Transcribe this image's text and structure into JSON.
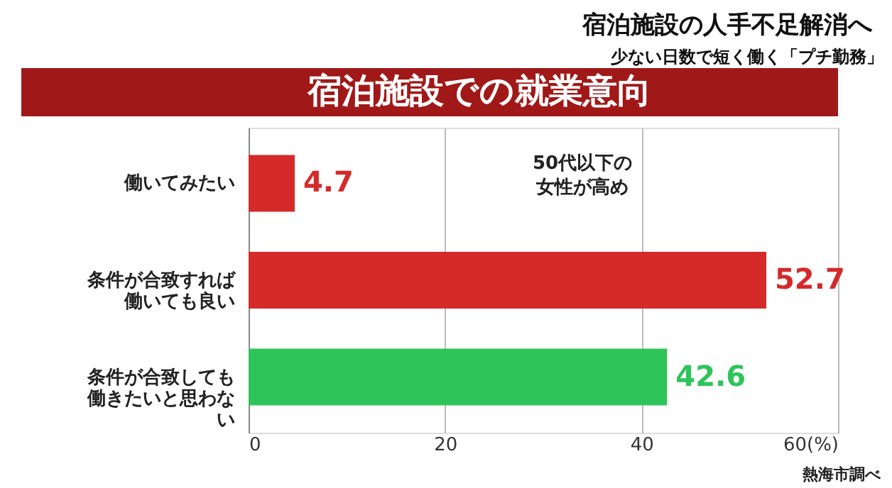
{
  "chart_data": {
    "type": "bar",
    "orientation": "horizontal",
    "title": "宿泊施設での就業意向",
    "categories": [
      "働いてみたい",
      "条件が合致すれば働いても良い",
      "条件が合致しても働きたいと思わない"
    ],
    "values": [
      4.7,
      52.7,
      42.6
    ],
    "colors": [
      "#d42a2a",
      "#d42a2a",
      "#2ec45a"
    ],
    "xlim": [
      0,
      60
    ],
    "xticks": [
      0,
      20,
      40,
      {
        "value": 60,
        "label": "60(%)"
      }
    ],
    "grid": "x",
    "data_labels": true,
    "annotations": [
      "宿泊施設の人手不足解消へ",
      "少ない日数で短く働く「プチ勤務」",
      "50代以下の女性が高め",
      "熱海市調べ"
    ]
  }
}
